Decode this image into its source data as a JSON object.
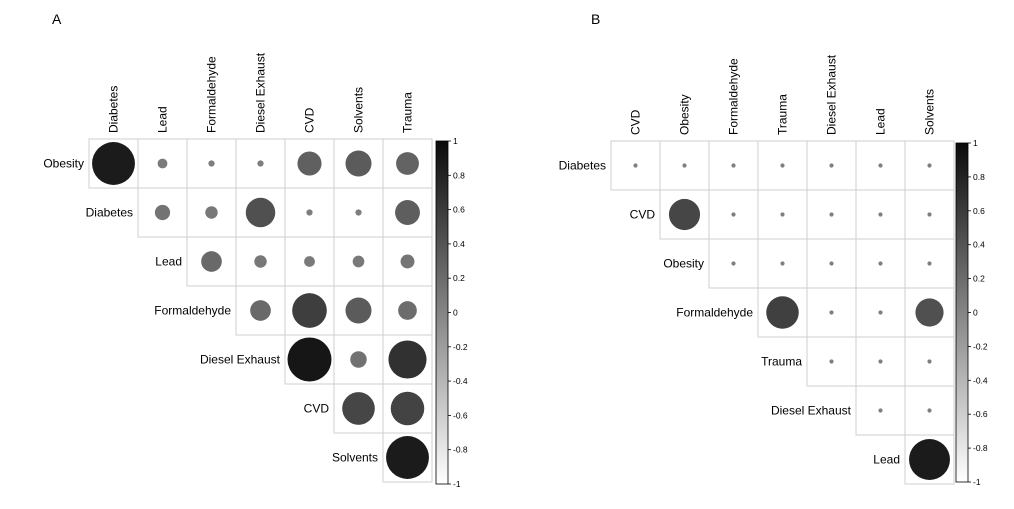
{
  "chart_data": [
    {
      "type": "heatmap",
      "panel_label": "A",
      "col_labels": [
        "Diabetes",
        "Lead",
        "Formaldehyde",
        "Diesel Exhaust",
        "CVD",
        "Solvents",
        "Trauma"
      ],
      "row_labels": [
        "Obesity",
        "Diabetes",
        "Lead",
        "Formaldehyde",
        "Diesel Exhaust",
        "CVD",
        "Solvents"
      ],
      "values": [
        [
          0.95,
          0.05,
          0.02,
          0.02,
          0.3,
          0.35,
          0.27
        ],
        [
          null,
          0.12,
          0.08,
          0.45,
          0.02,
          0.02,
          0.32
        ],
        [
          null,
          null,
          0.22,
          0.08,
          0.06,
          0.07,
          0.1
        ],
        [
          null,
          null,
          null,
          0.22,
          0.62,
          0.35,
          0.18
        ],
        [
          null,
          null,
          null,
          null,
          1.0,
          0.14,
          0.75
        ],
        [
          null,
          null,
          null,
          null,
          null,
          0.55,
          0.58
        ],
        [
          null,
          null,
          null,
          null,
          null,
          null,
          0.95
        ]
      ],
      "colorbar": {
        "ticks": [
          "1",
          "0.8",
          "0.6",
          "0.4",
          "0.2",
          "0",
          "-0.2",
          "-0.4",
          "-0.6",
          "-0.8",
          "-1"
        ],
        "range": [
          -1,
          1
        ]
      }
    },
    {
      "type": "heatmap",
      "panel_label": "B",
      "col_labels": [
        "CVD",
        "Obesity",
        "Formaldehyde",
        "Trauma",
        "Diesel Exhaust",
        "Lead",
        "Solvents"
      ],
      "row_labels": [
        "Diabetes",
        "CVD",
        "Obesity",
        "Formaldehyde",
        "Trauma",
        "Diesel Exhaust",
        "Lead"
      ],
      "values": [
        [
          0.01,
          0.01,
          0.01,
          0.01,
          0.01,
          0.01,
          0.01
        ],
        [
          null,
          0.55,
          0.01,
          0.01,
          0.01,
          0.01,
          0.01
        ],
        [
          null,
          null,
          0.01,
          0.01,
          0.01,
          0.01,
          0.01
        ],
        [
          null,
          null,
          null,
          0.6,
          0.01,
          0.01,
          0.45
        ],
        [
          null,
          null,
          null,
          null,
          0.01,
          0.01,
          0.01
        ],
        [
          null,
          null,
          null,
          null,
          null,
          0.01,
          0.01
        ],
        [
          null,
          null,
          null,
          null,
          null,
          null,
          0.95
        ]
      ],
      "colorbar": {
        "ticks": [
          "1",
          "0.8",
          "0.6",
          "0.4",
          "0.2",
          "0",
          "-0.2",
          "-0.4",
          "-0.6",
          "-0.8",
          "-1"
        ],
        "range": [
          -1,
          1
        ]
      }
    }
  ]
}
